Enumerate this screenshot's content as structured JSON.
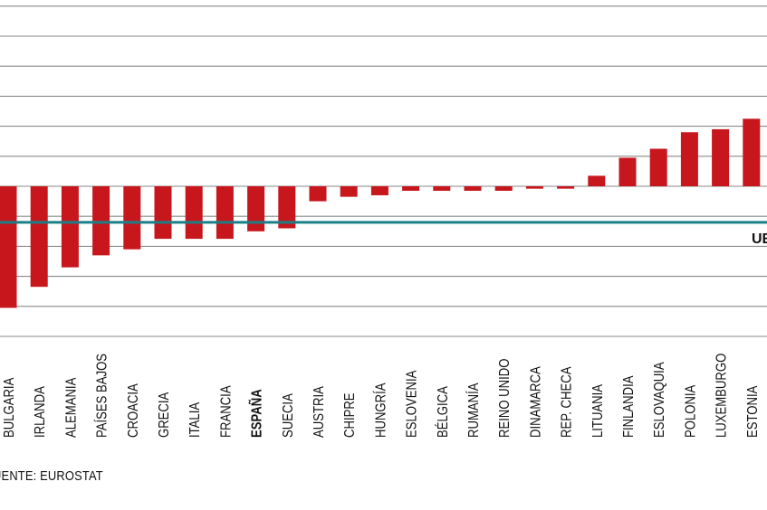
{
  "chart_data": {
    "type": "bar",
    "categories": [
      "BULGARIA",
      "IRLANDA",
      "ALEMANIA",
      "PAÍSES BAJOS",
      "CROACIA",
      "GRECIA",
      "ITALIA",
      "FRANCIA",
      "ESPAÑA",
      "SUECIA",
      "AUSTRIA",
      "CHIPRE",
      "HUNGRÍA",
      "ESLOVENIA",
      "BÉLGICA",
      "RUMANÍA",
      "REINO UNIDO",
      "DINAMARCA",
      "REP. CHECA",
      "LITUANIA",
      "FINLANDIA",
      "ESLOVAQUIA",
      "POLONIA",
      "LUXEMBURGO",
      "ESTONIA"
    ],
    "values": [
      -4.05,
      -3.35,
      -2.7,
      -2.3,
      -2.1,
      -1.75,
      -1.75,
      -1.75,
      -1.5,
      -1.4,
      -0.5,
      -0.35,
      -0.3,
      -0.15,
      -0.15,
      -0.15,
      -0.15,
      -0.08,
      -0.08,
      0.35,
      0.95,
      1.25,
      1.8,
      1.9,
      2.25
    ],
    "highlight": "ESPAÑA",
    "ylim": [
      -5,
      6
    ],
    "grid": true,
    "bar_color": "#c8161d",
    "reference_line": {
      "label": "UE",
      "value": -1.2,
      "color": "#1a7f86"
    },
    "source": "FUENTE: EUROSTAT"
  }
}
